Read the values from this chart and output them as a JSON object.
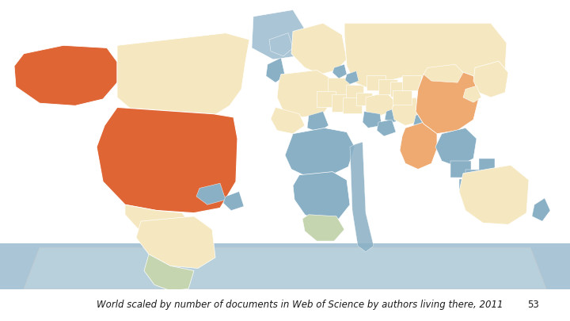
{
  "caption": "World scaled by number of documents in Web of Science by authors living there, 2011",
  "page_number": "53",
  "caption_fontsize": 8.5,
  "page_number_fontsize": 8.5,
  "background_color": "#ffffff",
  "colors": {
    "high": "#e06535",
    "medium_high": "#eeaa70",
    "medium": "#f5c896",
    "low_medium": "#f5d9a8",
    "low": "#f5e8c0",
    "very_low": "#c5d5b0",
    "minimal": "#8ab0c5",
    "ocean_blue": "#aac5d5",
    "water": "#b8d0dc"
  },
  "fig_width": 7.2,
  "fig_height": 4.05,
  "dpi": 100
}
